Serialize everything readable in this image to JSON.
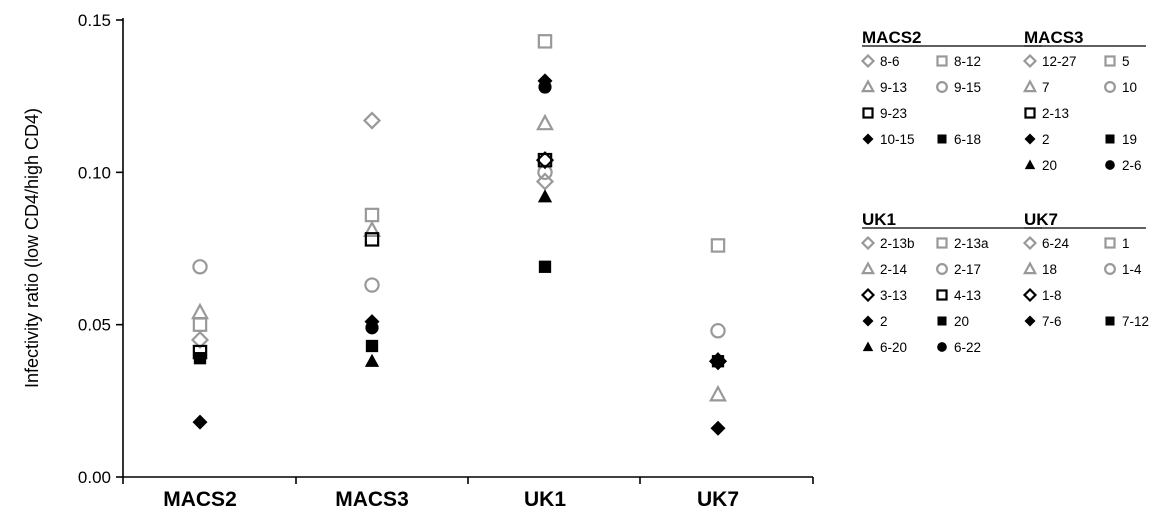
{
  "chart_data": {
    "type": "scatter",
    "ylabel": "Infectivity ratio (low CD4/high CD4)",
    "xlabel": "",
    "title": "",
    "ylim": [
      0,
      0.15
    ],
    "yticks": [
      0,
      0.05,
      0.1,
      0.15
    ],
    "ytick_labels": [
      "0.00",
      "0.05",
      "0.10",
      "0.15"
    ],
    "categories": [
      "MACS2",
      "MACS3",
      "UK1",
      "UK7"
    ],
    "groups": [
      {
        "name": "MACS2",
        "series": [
          {
            "name": "8-6",
            "marker": "diamond-open",
            "color": "#999999",
            "y": 0.045
          },
          {
            "name": "8-12",
            "marker": "square-open",
            "color": "#999999",
            "y": 0.05
          },
          {
            "name": "9-13",
            "marker": "triangle-open",
            "color": "#999999",
            "y": 0.054
          },
          {
            "name": "9-15",
            "marker": "circle-open",
            "color": "#999999",
            "y": 0.069
          },
          {
            "name": "9-23",
            "marker": "square-open",
            "color": "#000000",
            "y": 0.041
          },
          {
            "name": "10-15",
            "marker": "diamond-filled",
            "color": "#000000",
            "y": 0.018
          },
          {
            "name": "6-18",
            "marker": "square-filled",
            "color": "#000000",
            "y": 0.039
          }
        ]
      },
      {
        "name": "MACS3",
        "series": [
          {
            "name": "12-27",
            "marker": "diamond-open",
            "color": "#999999",
            "y": 0.117
          },
          {
            "name": "5",
            "marker": "square-open",
            "color": "#999999",
            "y": 0.086
          },
          {
            "name": "7",
            "marker": "triangle-open",
            "color": "#999999",
            "y": 0.081
          },
          {
            "name": "10",
            "marker": "circle-open",
            "color": "#999999",
            "y": 0.063
          },
          {
            "name": "2-13",
            "marker": "square-open",
            "color": "#000000",
            "y": 0.078
          },
          {
            "name": "2",
            "marker": "diamond-filled",
            "color": "#000000",
            "y": 0.051
          },
          {
            "name": "19",
            "marker": "square-filled",
            "color": "#000000",
            "y": 0.043
          },
          {
            "name": "20",
            "marker": "triangle-filled",
            "color": "#000000",
            "y": 0.038
          },
          {
            "name": "2-6",
            "marker": "circle-filled",
            "color": "#000000",
            "y": 0.049
          }
        ]
      },
      {
        "name": "UK1",
        "series": [
          {
            "name": "2-13b",
            "marker": "diamond-open",
            "color": "#999999",
            "y": 0.097
          },
          {
            "name": "2-13a",
            "marker": "square-open",
            "color": "#999999",
            "y": 0.143
          },
          {
            "name": "2-14",
            "marker": "triangle-open",
            "color": "#999999",
            "y": 0.116
          },
          {
            "name": "2-17",
            "marker": "circle-open",
            "color": "#999999",
            "y": 0.1
          },
          {
            "name": "3-13",
            "marker": "diamond-open",
            "color": "#000000",
            "y": 0.104
          },
          {
            "name": "4-13",
            "marker": "square-open",
            "color": "#000000",
            "y": 0.104
          },
          {
            "name": "2",
            "marker": "diamond-filled",
            "color": "#000000",
            "y": 0.13
          },
          {
            "name": "20",
            "marker": "square-filled",
            "color": "#000000",
            "y": 0.069
          },
          {
            "name": "6-20",
            "marker": "triangle-filled",
            "color": "#000000",
            "y": 0.092
          },
          {
            "name": "6-22",
            "marker": "circle-filled",
            "color": "#000000",
            "y": 0.128
          }
        ]
      },
      {
        "name": "UK7",
        "series": [
          {
            "name": "6-24",
            "marker": "diamond-open",
            "color": "#999999",
            "y": 0.038
          },
          {
            "name": "1",
            "marker": "square-open",
            "color": "#999999",
            "y": 0.076
          },
          {
            "name": "18",
            "marker": "triangle-open",
            "color": "#999999",
            "y": 0.027
          },
          {
            "name": "1-4",
            "marker": "circle-open",
            "color": "#999999",
            "y": 0.048
          },
          {
            "name": "1-8",
            "marker": "diamond-open",
            "color": "#000000",
            "y": 0.038
          },
          {
            "name": "7-6",
            "marker": "diamond-filled",
            "color": "#000000",
            "y": 0.016
          },
          {
            "name": "7-12",
            "marker": "square-filled",
            "color": "#000000",
            "y": 0.038
          }
        ]
      }
    ],
    "legend_position": "right",
    "grid": false
  }
}
